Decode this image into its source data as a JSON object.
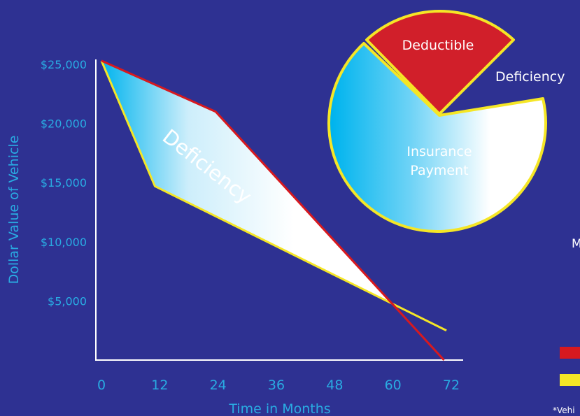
{
  "colors": {
    "background": "#2e3192",
    "label": "#29abe2",
    "loan_line": "#d7191f",
    "value_line": "#f5e626",
    "deductible": "#d11f2a",
    "fill_cyan": "#00b4ee",
    "fill_white": "#ffffff",
    "axis": "#ffffff"
  },
  "chart_data": [
    {
      "type": "line",
      "xlabel": "Time in Months",
      "ylabel": "Dollar Value of Vehicle",
      "xticks": [
        0,
        12,
        24,
        36,
        48,
        60,
        72
      ],
      "xtick_labels": [
        "0",
        "12",
        "24",
        "36",
        "48",
        "60",
        "72"
      ],
      "yticks": [
        5000,
        10000,
        15000,
        20000,
        25000
      ],
      "ytick_labels": [
        "$5,000",
        "$10,000",
        "$15,000",
        "$20,000",
        "$25,000"
      ],
      "xlim": [
        0,
        76
      ],
      "ylim": [
        0,
        25000
      ],
      "series": [
        {
          "color": "#d7191f",
          "x": [
            0,
            23.5,
            70.5
          ],
          "y": [
            25300,
            21000,
            0
          ]
        },
        {
          "color": "#f5e626",
          "x": [
            0,
            11,
            71
          ],
          "y": [
            25300,
            14700,
            2500
          ]
        }
      ],
      "annotations": [
        {
          "text": "Deficiency"
        }
      ]
    },
    {
      "type": "pie",
      "slices": [
        {
          "label": "Deductible",
          "color": "#d11f2a"
        },
        {
          "label": "Insurance Payment",
          "color": "#00b4ee"
        },
        {
          "label": "Deficiency",
          "color": "#ffffff"
        }
      ]
    }
  ],
  "labels": {
    "pie_deductible": "Deductible",
    "pie_insurance_line1": "Insurance",
    "pie_insurance_line2": "Payment",
    "pie_deficiency": "Deficiency",
    "cut_letter": "M",
    "footnote": "*Vehi"
  }
}
